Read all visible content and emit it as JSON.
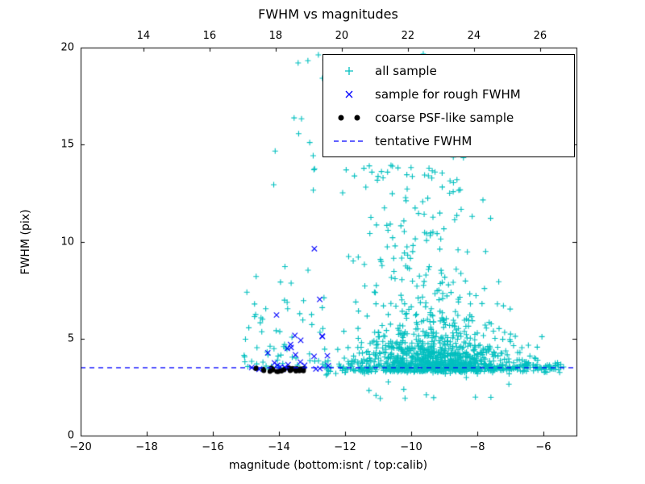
{
  "chart_data": {
    "type": "scatter",
    "title": "FWHM vs magnitudes",
    "xlabel": "magnitude (bottom:isnt / top:calib)",
    "ylabel": "FWHM (pix)",
    "xlim": [
      -20,
      -5
    ],
    "ylim": [
      0,
      20
    ],
    "top_xlim": [
      12.1,
      27.1
    ],
    "grid": false,
    "x_ticks_bottom": {
      "values": [
        -20,
        -18,
        -16,
        -14,
        -12,
        -10,
        -8,
        -6
      ],
      "labels": [
        "−20",
        "−18",
        "−16",
        "−14",
        "−12",
        "−10",
        "−8",
        "−6"
      ]
    },
    "x_ticks_top": {
      "values": [
        14,
        16,
        18,
        20,
        22,
        24,
        26
      ],
      "labels": [
        "14",
        "16",
        "18",
        "20",
        "22",
        "24",
        "26"
      ]
    },
    "y_ticks": {
      "values": [
        0,
        5,
        10,
        15,
        20
      ],
      "labels": [
        "0",
        "5",
        "10",
        "15",
        "20"
      ]
    },
    "tentative_fwhm": 3.5,
    "tentative_fwhm_color": "#0000ff",
    "legend": {
      "position": "upper right",
      "items": [
        {
          "label": "all sample",
          "marker": "plus",
          "color": "#00bfbf"
        },
        {
          "label": "sample for rough FWHM",
          "marker": "x",
          "color": "#0000ff"
        },
        {
          "label": "coarse PSF-like sample",
          "marker": "dot",
          "color": "#000000"
        },
        {
          "label": "tentative FWHM",
          "marker": "dashed-line",
          "color": "#0000ff"
        }
      ]
    },
    "seed": 7,
    "series": [
      {
        "name": "all sample",
        "marker": "plus",
        "color": "#00bfbf",
        "clusters": [
          {
            "count": 260,
            "x": {
              "dist": "uniform",
              "min": -12.6,
              "max": -5.3
            },
            "y": {
              "dist": "normal",
              "mean": 3.5,
              "sigma": 0.15,
              "min": 3.0,
              "max": 4.1
            }
          },
          {
            "count": 900,
            "x": {
              "dist": "normal",
              "mean": -9.2,
              "sigma": 1.15,
              "min": -12.6,
              "max": -5.3
            },
            "y": {
              "dist": "expshift",
              "base": 3.3,
              "scale": 0.9,
              "max": 13
            }
          },
          {
            "count": 150,
            "x": {
              "dist": "normal",
              "mean": -9.8,
              "sigma": 1.0,
              "min": -12.5,
              "max": -6.5
            },
            "y": {
              "dist": "uniform",
              "min": 5,
              "max": 14
            }
          },
          {
            "count": 50,
            "x": {
              "dist": "normal",
              "mean": -10.2,
              "sigma": 1.3,
              "min": -13.0,
              "max": -7.5
            },
            "y": {
              "dist": "uniform",
              "min": 13,
              "max": 19.8
            }
          },
          {
            "count": 70,
            "x": {
              "dist": "uniform",
              "min": -15.1,
              "max": -12.6
            },
            "y": {
              "dist": "expshift",
              "base": 3.4,
              "scale": 2.0,
              "max": 12
            }
          },
          {
            "count": 12,
            "x": {
              "dist": "uniform",
              "min": -14.2,
              "max": -12.6
            },
            "y": {
              "dist": "uniform",
              "min": 12,
              "max": 19.7
            }
          },
          {
            "count": 12,
            "x": {
              "dist": "normal",
              "mean": -9.3,
              "sigma": 1.2,
              "min": -12.0,
              "max": -6.0
            },
            "y": {
              "dist": "uniform",
              "min": 1.8,
              "max": 3.1
            }
          }
        ]
      },
      {
        "name": "sample for rough FWHM",
        "marker": "x",
        "color": "#0000ff",
        "clusters": [
          {
            "count": 16,
            "x": {
              "dist": "uniform",
              "min": -14.85,
              "max": -12.4
            },
            "y": {
              "dist": "normal",
              "mean": 3.55,
              "sigma": 0.12
            }
          },
          {
            "count": 14,
            "x": {
              "dist": "uniform",
              "min": -14.8,
              "max": -12.5
            },
            "y": {
              "dist": "expshift",
              "base": 4.0,
              "scale": 2.0,
              "max": 10.5
            }
          }
        ]
      },
      {
        "name": "coarse PSF-like sample",
        "marker": "dot",
        "color": "#000000",
        "clusters": [
          {
            "count": 30,
            "x": {
              "dist": "uniform",
              "min": -14.75,
              "max": -13.2
            },
            "y": {
              "dist": "normal",
              "mean": 3.4,
              "sigma": 0.06
            }
          }
        ]
      }
    ]
  }
}
